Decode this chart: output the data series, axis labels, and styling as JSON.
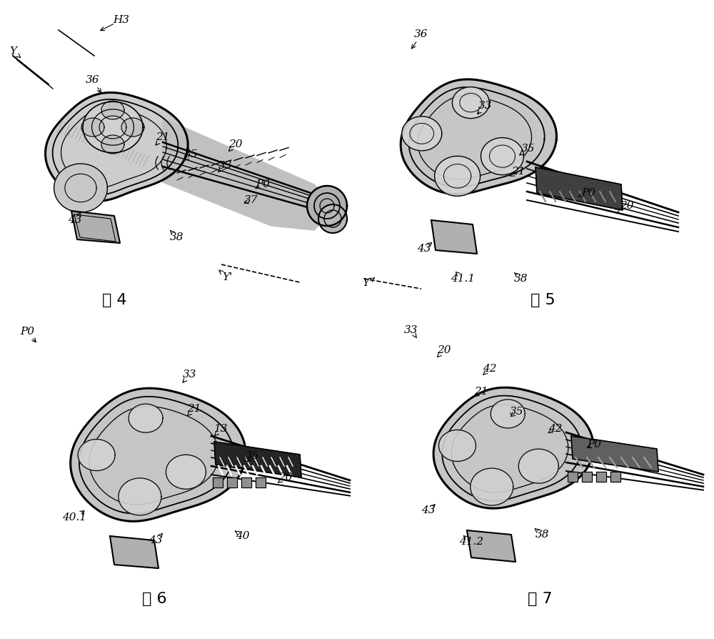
{
  "background_color": "#ffffff",
  "fig_width": 10.0,
  "fig_height": 8.94,
  "dpi": 100,
  "fig4_labels": [
    [
      "H3",
      170,
      28,
      130,
      48
    ],
    [
      "Y",
      18,
      72,
      38,
      88
    ],
    [
      "36",
      130,
      112,
      148,
      140
    ],
    [
      "21",
      228,
      192,
      210,
      212
    ],
    [
      "35",
      268,
      216,
      250,
      232
    ],
    [
      "20",
      330,
      202,
      312,
      220
    ],
    [
      "33",
      316,
      232,
      296,
      248
    ],
    [
      "P0",
      368,
      258,
      350,
      268
    ],
    [
      "37",
      352,
      280,
      334,
      288
    ],
    [
      "43",
      105,
      308,
      120,
      288
    ],
    [
      "38",
      248,
      332,
      232,
      316
    ],
    [
      "Y'",
      318,
      388,
      298,
      370
    ]
  ],
  "fig5_labels": [
    [
      "36",
      590,
      48,
      570,
      78
    ],
    [
      "33",
      680,
      148,
      660,
      168
    ],
    [
      "35",
      740,
      208,
      718,
      224
    ],
    [
      "21",
      726,
      240,
      704,
      252
    ],
    [
      "P0",
      824,
      270,
      802,
      278
    ],
    [
      "20",
      878,
      288,
      862,
      296
    ],
    [
      "43",
      594,
      348,
      614,
      332
    ],
    [
      "41.1",
      648,
      390,
      632,
      374
    ],
    [
      "38",
      730,
      390,
      712,
      374
    ],
    [
      "Y'",
      514,
      396,
      534,
      382
    ]
  ],
  "fig6_labels": [
    [
      "P0",
      38,
      464,
      58,
      488
    ],
    [
      "33",
      266,
      524,
      248,
      544
    ],
    [
      "21",
      272,
      572,
      256,
      588
    ],
    [
      "13",
      310,
      600,
      294,
      616
    ],
    [
      "35",
      354,
      638,
      340,
      652
    ],
    [
      "20",
      400,
      668,
      382,
      680
    ],
    [
      "40.1",
      104,
      724,
      128,
      708
    ],
    [
      "43",
      218,
      756,
      234,
      740
    ],
    [
      "40",
      340,
      750,
      322,
      738
    ]
  ],
  "fig7_labels": [
    [
      "33",
      576,
      462,
      590,
      482
    ],
    [
      "20",
      622,
      490,
      604,
      508
    ],
    [
      "42",
      686,
      516,
      668,
      532
    ],
    [
      "21",
      674,
      548,
      658,
      560
    ],
    [
      "35",
      724,
      576,
      708,
      588
    ],
    [
      "42",
      778,
      600,
      760,
      610
    ],
    [
      "P0",
      832,
      622,
      814,
      630
    ],
    [
      "43",
      600,
      714,
      618,
      698
    ],
    [
      "41.2",
      660,
      758,
      642,
      744
    ],
    [
      "38",
      760,
      748,
      742,
      734
    ]
  ],
  "fig_labels": [
    [
      "图 4",
      160,
      420
    ],
    [
      "图 5",
      760,
      420
    ],
    [
      "图 6",
      216,
      838
    ],
    [
      "图 7",
      756,
      838
    ]
  ]
}
